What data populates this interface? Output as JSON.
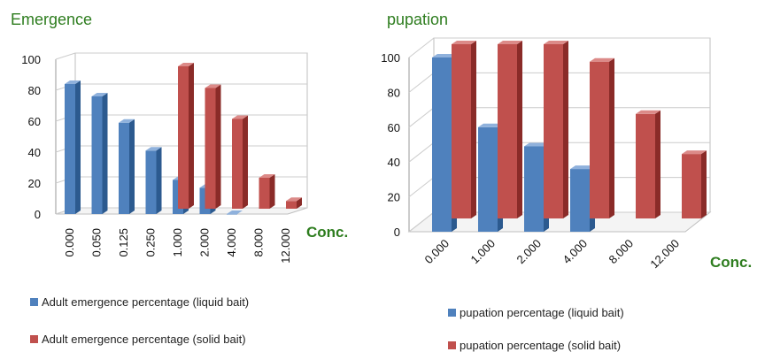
{
  "colors": {
    "liquid_front": "#4f81bd",
    "liquid_side": "#2c5a8f",
    "liquid_top": "#8fb1dc",
    "solid_front": "#c0504d",
    "solid_side": "#8a2b28",
    "solid_top": "#dc8a88",
    "title_green": "#2e7d1f",
    "grid": "#cccccc"
  },
  "chart_data": [
    {
      "type": "bar",
      "title": "Emergence",
      "xlabel": "Conc.",
      "ylabel": "",
      "ylim": [
        0,
        100
      ],
      "yticks": [
        "0",
        "20",
        "40",
        "60",
        "80",
        "100"
      ],
      "categories": [
        "0.000",
        "0.050",
        "0.125",
        "0.250",
        "1.000",
        "2.000",
        "4.000",
        "8.000",
        "12.000"
      ],
      "series": [
        {
          "name": "Adult emergence percentage (liquid bait)",
          "values": [
            84,
            76,
            59,
            41,
            22,
            17,
            0,
            null,
            null
          ]
        },
        {
          "name": "Adult emergence percentage (solid bait)",
          "values": [
            null,
            null,
            null,
            null,
            92,
            78,
            58,
            20,
            5
          ]
        }
      ],
      "grid": true,
      "legend": "bottom"
    },
    {
      "type": "bar",
      "title": "pupation",
      "xlabel": "Conc.",
      "ylabel": "",
      "ylim": [
        0,
        100
      ],
      "yticks": [
        "0",
        "20",
        "40",
        "60",
        "80",
        "100"
      ],
      "categories": [
        "0.000",
        "1.000",
        "2.000",
        "4.000",
        "8.000",
        "12.000"
      ],
      "series": [
        {
          "name": "pupation percentage (liquid bait)",
          "values": [
            100,
            60,
            49,
            36,
            null,
            null
          ]
        },
        {
          "name": "pupation percentage (solid bait)",
          "values": [
            100,
            100,
            100,
            90,
            60,
            37
          ]
        }
      ],
      "grid": true,
      "legend": "bottom"
    }
  ]
}
